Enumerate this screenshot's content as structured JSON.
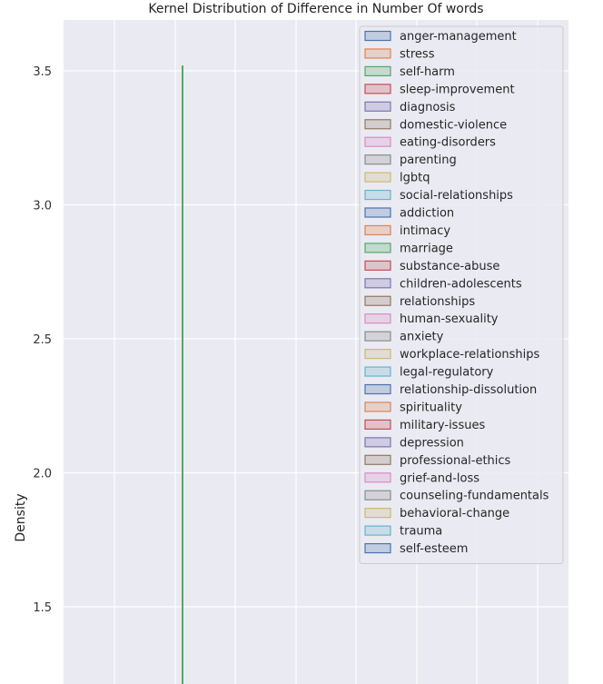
{
  "chart_data": {
    "type": "area",
    "title": "Kernel Distribution of Difference in Number Of words",
    "xlabel": "",
    "ylabel": "Density",
    "ylim": [
      1.2,
      3.7
    ],
    "y_ticks": [
      1.5,
      2.0,
      2.5,
      3.0,
      3.5
    ],
    "y_tick_labels": [
      "1.5",
      "2.0",
      "2.5",
      "3.0",
      "3.5"
    ],
    "grid": true,
    "legend_position": "top-right",
    "plot_background": "#eaeaf2",
    "series": [
      {
        "name": "anger-management",
        "color": "#4c72b0"
      },
      {
        "name": "stress",
        "color": "#dd8452"
      },
      {
        "name": "self-harm",
        "color": "#55a868",
        "peak_density": 3.52
      },
      {
        "name": "sleep-improvement",
        "color": "#c44e52"
      },
      {
        "name": "diagnosis",
        "color": "#8172b3"
      },
      {
        "name": "domestic-violence",
        "color": "#937860"
      },
      {
        "name": "eating-disorders",
        "color": "#da8bc3"
      },
      {
        "name": "parenting",
        "color": "#8c8c8c"
      },
      {
        "name": "lgbtq",
        "color": "#ccb974"
      },
      {
        "name": "social-relationships",
        "color": "#64b5cd"
      },
      {
        "name": "addiction",
        "color": "#4c72b0"
      },
      {
        "name": "intimacy",
        "color": "#dd8452"
      },
      {
        "name": "marriage",
        "color": "#55a868"
      },
      {
        "name": "substance-abuse",
        "color": "#c44e52"
      },
      {
        "name": "children-adolescents",
        "color": "#8172b3"
      },
      {
        "name": "relationships",
        "color": "#937860"
      },
      {
        "name": "human-sexuality",
        "color": "#da8bc3"
      },
      {
        "name": "anxiety",
        "color": "#8c8c8c"
      },
      {
        "name": "workplace-relationships",
        "color": "#ccb974"
      },
      {
        "name": "legal-regulatory",
        "color": "#64b5cd"
      },
      {
        "name": "relationship-dissolution",
        "color": "#4c72b0"
      },
      {
        "name": "spirituality",
        "color": "#dd8452"
      },
      {
        "name": "military-issues",
        "color": "#c44e52"
      },
      {
        "name": "depression",
        "color": "#8172b3"
      },
      {
        "name": "professional-ethics",
        "color": "#937860"
      },
      {
        "name": "grief-and-loss",
        "color": "#da8bc3"
      },
      {
        "name": "counseling-fundamentals",
        "color": "#8c8c8c"
      },
      {
        "name": "behavioral-change",
        "color": "#ccb974"
      },
      {
        "name": "trauma",
        "color": "#64b5cd"
      },
      {
        "name": "self-esteem",
        "color": "#4c72b0"
      }
    ]
  }
}
